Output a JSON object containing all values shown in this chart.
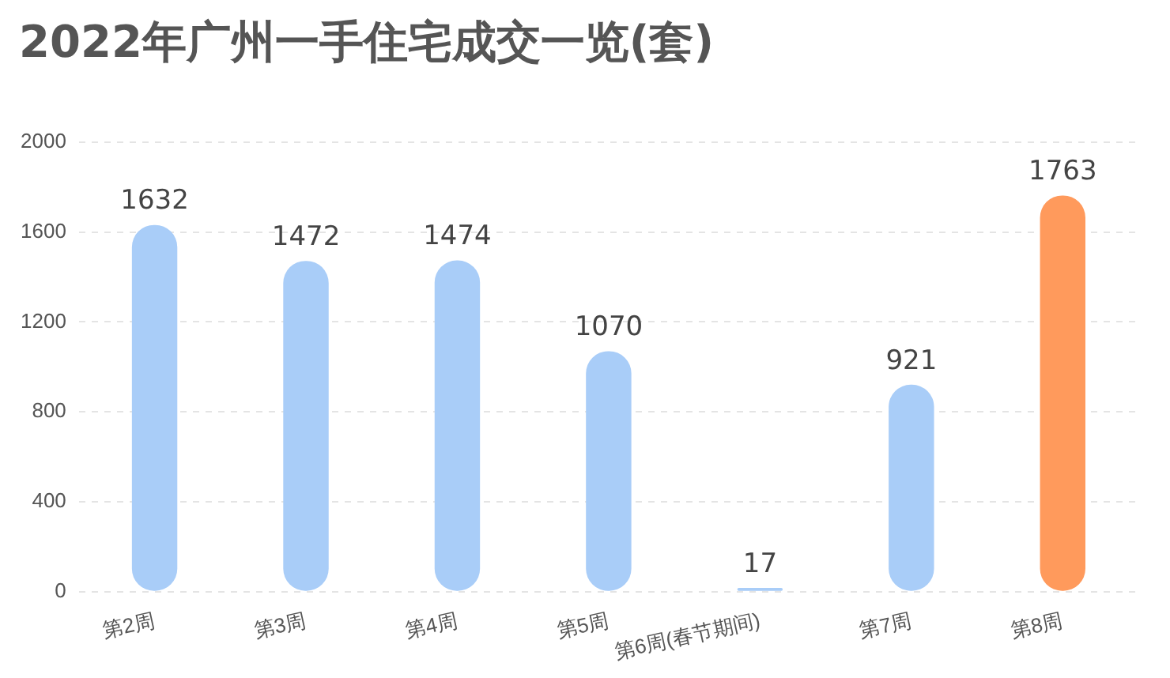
{
  "chart_data": {
    "type": "bar",
    "title": "2022年广州一手住宅成交一览(套)",
    "categories": [
      "第2周",
      "第3周",
      "第4周",
      "第5周",
      "第6周(春节期间)",
      "第7周",
      "第8周"
    ],
    "values": [
      1632,
      1472,
      1474,
      1070,
      17,
      921,
      1763
    ],
    "colors": [
      "#a9cdf8",
      "#a9cdf8",
      "#a9cdf8",
      "#a9cdf8",
      "#a9cdf8",
      "#a9cdf8",
      "#ff9a5c"
    ],
    "ylim": [
      0,
      2000
    ],
    "yticks": [
      0,
      400,
      800,
      1200,
      1600,
      2000
    ],
    "grid": "y",
    "data_labels": true,
    "legend": false
  }
}
